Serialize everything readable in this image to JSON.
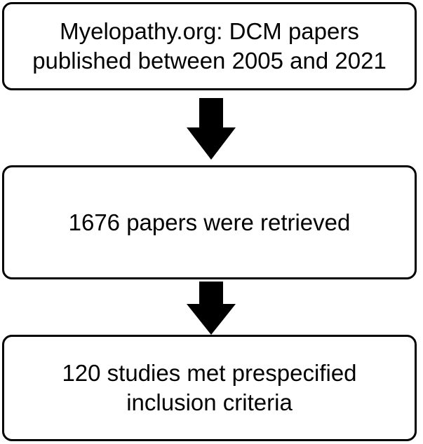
{
  "boxes": [
    {
      "text": "Myelopathy.org: DCM papers published between 2005 and 2021"
    },
    {
      "text": "1676 papers were retrieved"
    },
    {
      "text": "120 studies met prespecified inclusion criteria"
    }
  ]
}
